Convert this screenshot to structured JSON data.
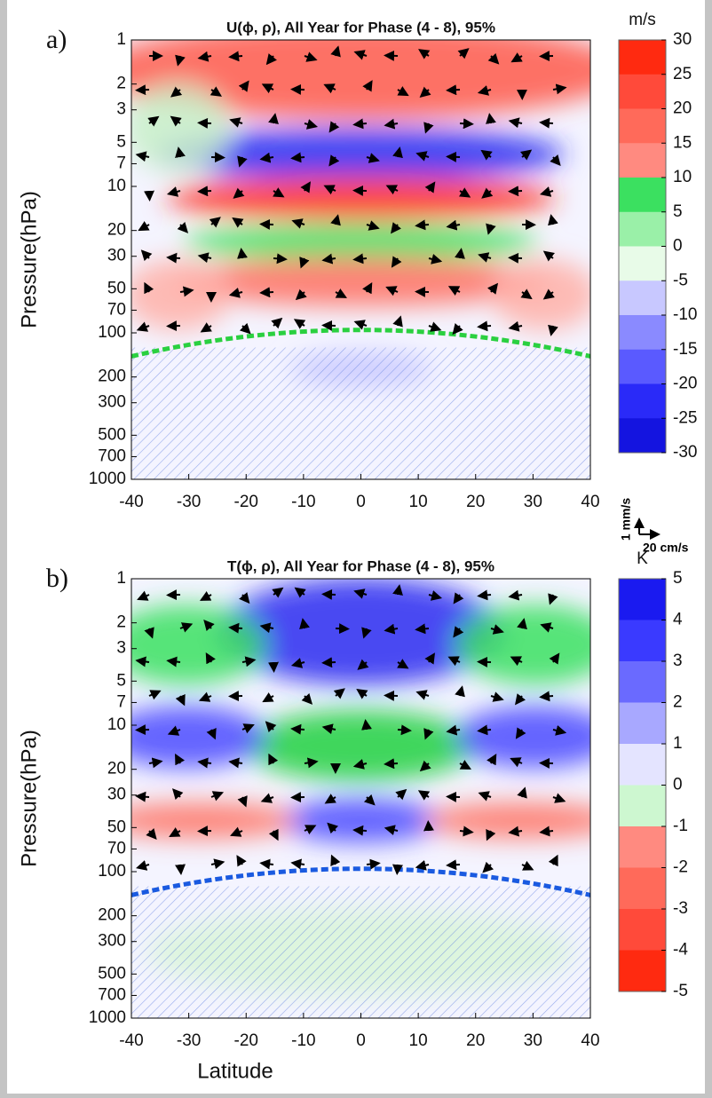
{
  "y_label": "Pressure(hPa)",
  "x_label": "Latitude",
  "arrow_legend": {
    "vertical": "1 mm/s",
    "horizontal": "20 cm/s"
  },
  "panels": [
    {
      "label": "a)",
      "title": "U(ϕ, ρ), All Year  for Phase (4 - 8), 95%",
      "unit": "m/s",
      "pressure_ticks": [
        1,
        2,
        3,
        5,
        7,
        10,
        20,
        30,
        50,
        70,
        100,
        200,
        300,
        500,
        700,
        1000
      ],
      "latitude_ticks": [
        -40,
        -30,
        -20,
        -10,
        0,
        10,
        20,
        30,
        40
      ],
      "colorbar_ticks": [
        30,
        25,
        20,
        15,
        10,
        5,
        0,
        -5,
        -10,
        -15,
        -20,
        -25,
        -30
      ],
      "colorbar_colors": [
        "#ff2a10",
        "#ff4a3a",
        "#ff6a5a",
        "#ff8a80",
        "#3be060",
        "#9af0a8",
        "#e8fbe8",
        "#c8c8ff",
        "#8a8aff",
        "#5a5aff",
        "#2a2af8",
        "#1414e0"
      ]
    },
    {
      "label": "b)",
      "title": "T(ϕ, ρ), All Year  for Phase (4 - 8), 95%",
      "unit": "K",
      "pressure_ticks": [
        1,
        2,
        3,
        5,
        7,
        10,
        20,
        30,
        50,
        70,
        100,
        200,
        300,
        500,
        700,
        1000
      ],
      "latitude_ticks": [
        -40,
        -30,
        -20,
        -10,
        0,
        10,
        20,
        30,
        40
      ],
      "colorbar_ticks": [
        5,
        4,
        3,
        2,
        1,
        0,
        -1,
        -2,
        -3,
        -4,
        -5
      ],
      "colorbar_colors": [
        "#1a1af0",
        "#3a3aff",
        "#6a6aff",
        "#a8a8ff",
        "#e4e4ff",
        "#cdf7d0",
        "#ff8a80",
        "#ff6a5a",
        "#ff4a3a",
        "#ff2a10"
      ]
    }
  ]
}
